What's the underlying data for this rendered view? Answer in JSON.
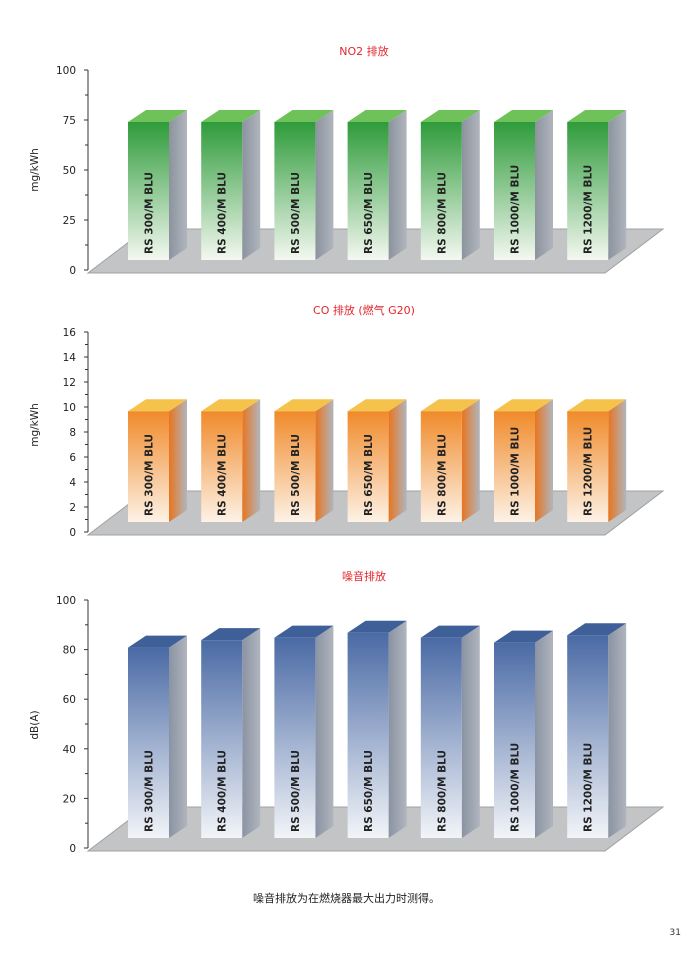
{
  "chart_data": [
    {
      "type": "bar",
      "title": "NO2 排放",
      "ylabel": "mg/kWh",
      "ylim": [
        0,
        100
      ],
      "yticks": [
        0,
        25,
        50,
        75,
        100
      ],
      "categories": [
        "RS 300/M BLU",
        "RS 400/M BLU",
        "RS 500/M BLU",
        "RS 650/M BLU",
        "RS 800/M BLU",
        "RS 1000/M BLU",
        "RS 1200/M BLU"
      ],
      "values": [
        73,
        73,
        73,
        73,
        73,
        73,
        73
      ],
      "colors": {
        "top": "#2e9b3a",
        "bottom": "#f4f8f1",
        "side": "#8c939e",
        "cap": "#6fc25a"
      }
    },
    {
      "type": "bar",
      "title": "CO 排放 (燃气 G20)",
      "ylabel": "mg/kWh",
      "ylim": [
        0,
        16
      ],
      "yticks": [
        0,
        2,
        4,
        6,
        8,
        10,
        12,
        14,
        16
      ],
      "categories": [
        "RS 300/M BLU",
        "RS 400/M BLU",
        "RS 500/M BLU",
        "RS 650/M BLU",
        "RS 800/M BLU",
        "RS 1000/M BLU",
        "RS 1200/M BLU"
      ],
      "values": [
        9.5,
        9.5,
        9.5,
        9.5,
        9.5,
        9.5,
        9.5
      ],
      "colors": {
        "top": "#f08a2a",
        "bottom": "#fdf2e6",
        "side": "#e8751f",
        "cap": "#f5c24c"
      }
    },
    {
      "type": "bar",
      "title": "噪音排放",
      "ylabel": "dB(A)",
      "ylim": [
        0,
        100
      ],
      "yticks": [
        0,
        20,
        40,
        60,
        80,
        100
      ],
      "categories": [
        "RS 300/M BLU",
        "RS 400/M BLU",
        "RS 500/M BLU",
        "RS 650/M BLU",
        "RS 800/M BLU",
        "RS 1000/M BLU",
        "RS 1200/M BLU"
      ],
      "values": [
        80,
        83,
        84,
        86,
        84,
        82,
        85
      ],
      "colors": {
        "top": "#4a6aa5",
        "bottom": "#f2f4f8",
        "side": "#8a93a3",
        "cap": "#3f5f98"
      }
    }
  ],
  "title_color": "#e3262d",
  "footnote": "噪音排放为在燃烧器最大出力时测得。",
  "page_number": "31"
}
